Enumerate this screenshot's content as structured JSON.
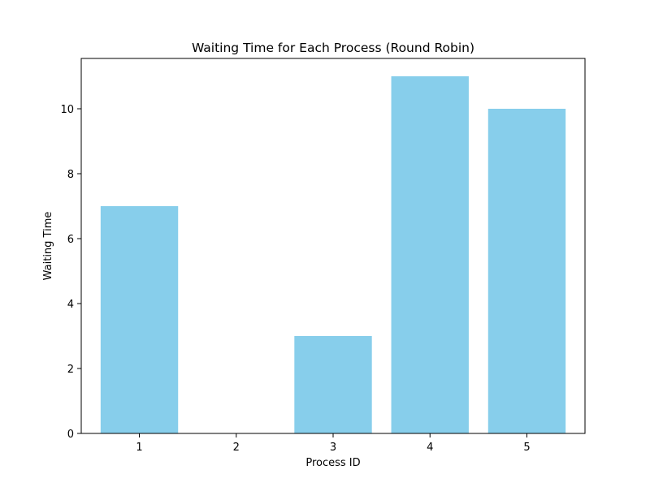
{
  "chart_data": {
    "type": "bar",
    "title": "Waiting Time for Each Process (Round Robin)",
    "xlabel": "Process ID",
    "ylabel": "Waiting Time",
    "categories": [
      "1",
      "2",
      "3",
      "4",
      "5"
    ],
    "values": [
      7,
      0,
      3,
      11,
      10
    ],
    "ylim": [
      0,
      11.55
    ],
    "yticks": [
      0,
      2,
      4,
      6,
      8,
      10
    ],
    "grid": false,
    "bar_color": "#87CEEB"
  }
}
